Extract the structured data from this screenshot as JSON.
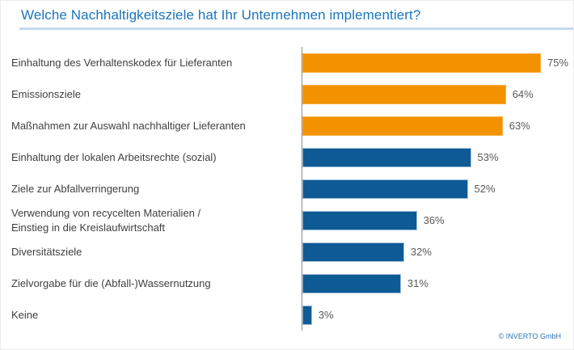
{
  "title": "Welche Nachhaltigkeitsziele hat Ihr Unternehmen implementiert?",
  "footer": {
    "copyright": "© INVERTO GmbH"
  },
  "colors": {
    "orange": "#f39200",
    "orange_border": "#f6ad3f",
    "blue": "#0e5a94",
    "blue_border": "#9dbbd8",
    "title": "#1b75bc",
    "underline": "#c4d9ef",
    "axis": "#8c8c8c",
    "label_text": "#3f3f3f",
    "value_text": "#595959",
    "footer_text": "#2e74b5"
  },
  "chart_data": {
    "type": "bar",
    "orientation": "horizontal",
    "title": "Welche Nachhaltigkeitsziele hat Ihr Unternehmen implementiert?",
    "xlabel": "",
    "ylabel": "",
    "xlim": [
      0,
      100
    ],
    "unit": "%",
    "grid": false,
    "legend": "none",
    "categories": [
      "Einhaltung des Verhaltenskodex für Lieferanten",
      "Emissionsziele",
      "Maßnahmen zur Auswahl nachhaltiger Lieferanten",
      "Einhaltung der lokalen Arbeitsrechte (sozial)",
      "Ziele zur Abfallverringerung",
      "Verwendung von recycelten Materialien /\nEinstieg in die Kreislaufwirtschaft",
      "Diversitätsziele",
      "Zielvorgabe für die (Abfall-)Wassernutzung",
      "Keine"
    ],
    "values": [
      75,
      64,
      63,
      53,
      52,
      36,
      32,
      31,
      3
    ],
    "value_labels": [
      "75%",
      "64%",
      "63%",
      "53%",
      "52%",
      "36%",
      "32%",
      "31%",
      "3%"
    ],
    "bar_colors": [
      "orange",
      "orange",
      "orange",
      "blue",
      "blue",
      "blue",
      "blue",
      "blue",
      "blue"
    ]
  }
}
